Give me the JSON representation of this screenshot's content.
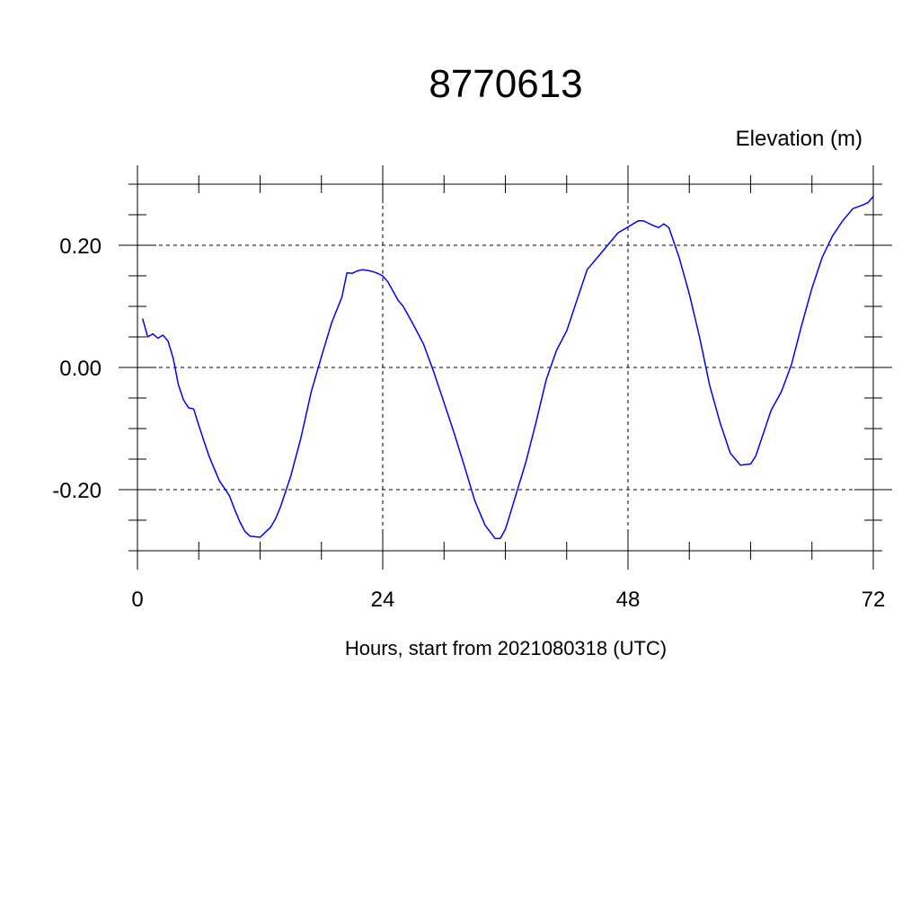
{
  "chart_data": {
    "type": "line",
    "title": "8770613",
    "unit_label": "Elevation (m)",
    "xlabel": "Hours, start from 2021080318 (UTC)",
    "xlim": [
      0,
      72
    ],
    "ylim": [
      -0.3,
      0.3
    ],
    "x_ticks": [
      0,
      24,
      48,
      72
    ],
    "x_tick_labels": [
      "0",
      "24",
      "48",
      "72"
    ],
    "x_minor_step": 6,
    "y_ticks": [
      -0.2,
      0.0,
      0.2
    ],
    "y_tick_labels": [
      "-0.20",
      "0.00",
      "0.20"
    ],
    "y_minor_step": 0.05,
    "grid": "dashed, at major ticks",
    "colors": {
      "series": "#0000ff",
      "axes": "#000000",
      "grid": "#000000"
    },
    "series": [
      {
        "x": [
          0.5,
          1.0,
          1.5,
          2.0,
          2.5,
          3.0,
          3.5,
          4.0,
          4.5,
          5.0,
          5.5,
          6.0,
          7.0,
          8.0,
          9.0,
          9.5,
          10.0,
          10.5,
          11.0,
          11.5,
          12.0,
          12.5,
          13.0,
          13.5,
          14.0,
          15.0,
          16.0,
          17.0,
          18.0,
          19.0,
          20.0,
          20.5,
          21.0,
          21.5,
          22.0,
          22.5,
          23.0,
          23.5,
          24.0,
          24.5,
          25.0,
          25.5,
          26.0,
          27.0,
          28.0,
          29.0,
          30.0,
          31.0,
          32.0,
          33.0,
          34.0,
          35.0,
          35.5,
          36.0,
          36.5,
          37.0,
          38.0,
          39.0,
          40.0,
          41.0,
          42.0,
          43.0,
          44.0,
          45.0,
          46.0,
          47.0,
          48.0,
          48.5,
          49.0,
          49.5,
          50.0,
          50.5,
          51.0,
          51.5,
          52.0,
          53.0,
          54.0,
          55.0,
          56.0,
          57.0,
          58.0,
          59.0,
          60.0,
          60.5,
          61.0,
          61.5,
          62.0,
          63.0,
          64.0,
          65.0,
          66.0,
          67.0,
          68.0,
          69.0,
          70.0,
          70.5,
          71.0,
          71.5,
          72.0
        ],
        "y": [
          0.08,
          0.05,
          0.055,
          0.048,
          0.053,
          0.043,
          0.015,
          -0.028,
          -0.053,
          -0.066,
          -0.068,
          -0.095,
          -0.145,
          -0.185,
          -0.21,
          -0.232,
          -0.252,
          -0.268,
          -0.276,
          -0.277,
          -0.278,
          -0.27,
          -0.262,
          -0.248,
          -0.228,
          -0.178,
          -0.115,
          -0.04,
          0.018,
          0.073,
          0.115,
          0.155,
          0.154,
          0.158,
          0.16,
          0.159,
          0.157,
          0.154,
          0.15,
          0.14,
          0.125,
          0.11,
          0.1,
          0.07,
          0.038,
          -0.008,
          -0.058,
          -0.108,
          -0.162,
          -0.218,
          -0.258,
          -0.28,
          -0.28,
          -0.265,
          -0.238,
          -0.21,
          -0.155,
          -0.09,
          -0.02,
          0.028,
          0.06,
          0.11,
          0.16,
          0.18,
          0.2,
          0.22,
          0.23,
          0.235,
          0.24,
          0.24,
          0.236,
          0.232,
          0.229,
          0.235,
          0.229,
          0.18,
          0.12,
          0.05,
          -0.03,
          -0.09,
          -0.14,
          -0.16,
          -0.158,
          -0.145,
          -0.12,
          -0.095,
          -0.07,
          -0.04,
          0.005,
          0.07,
          0.13,
          0.18,
          0.215,
          0.24,
          0.26,
          0.263,
          0.266,
          0.27,
          0.28
        ]
      }
    ]
  }
}
